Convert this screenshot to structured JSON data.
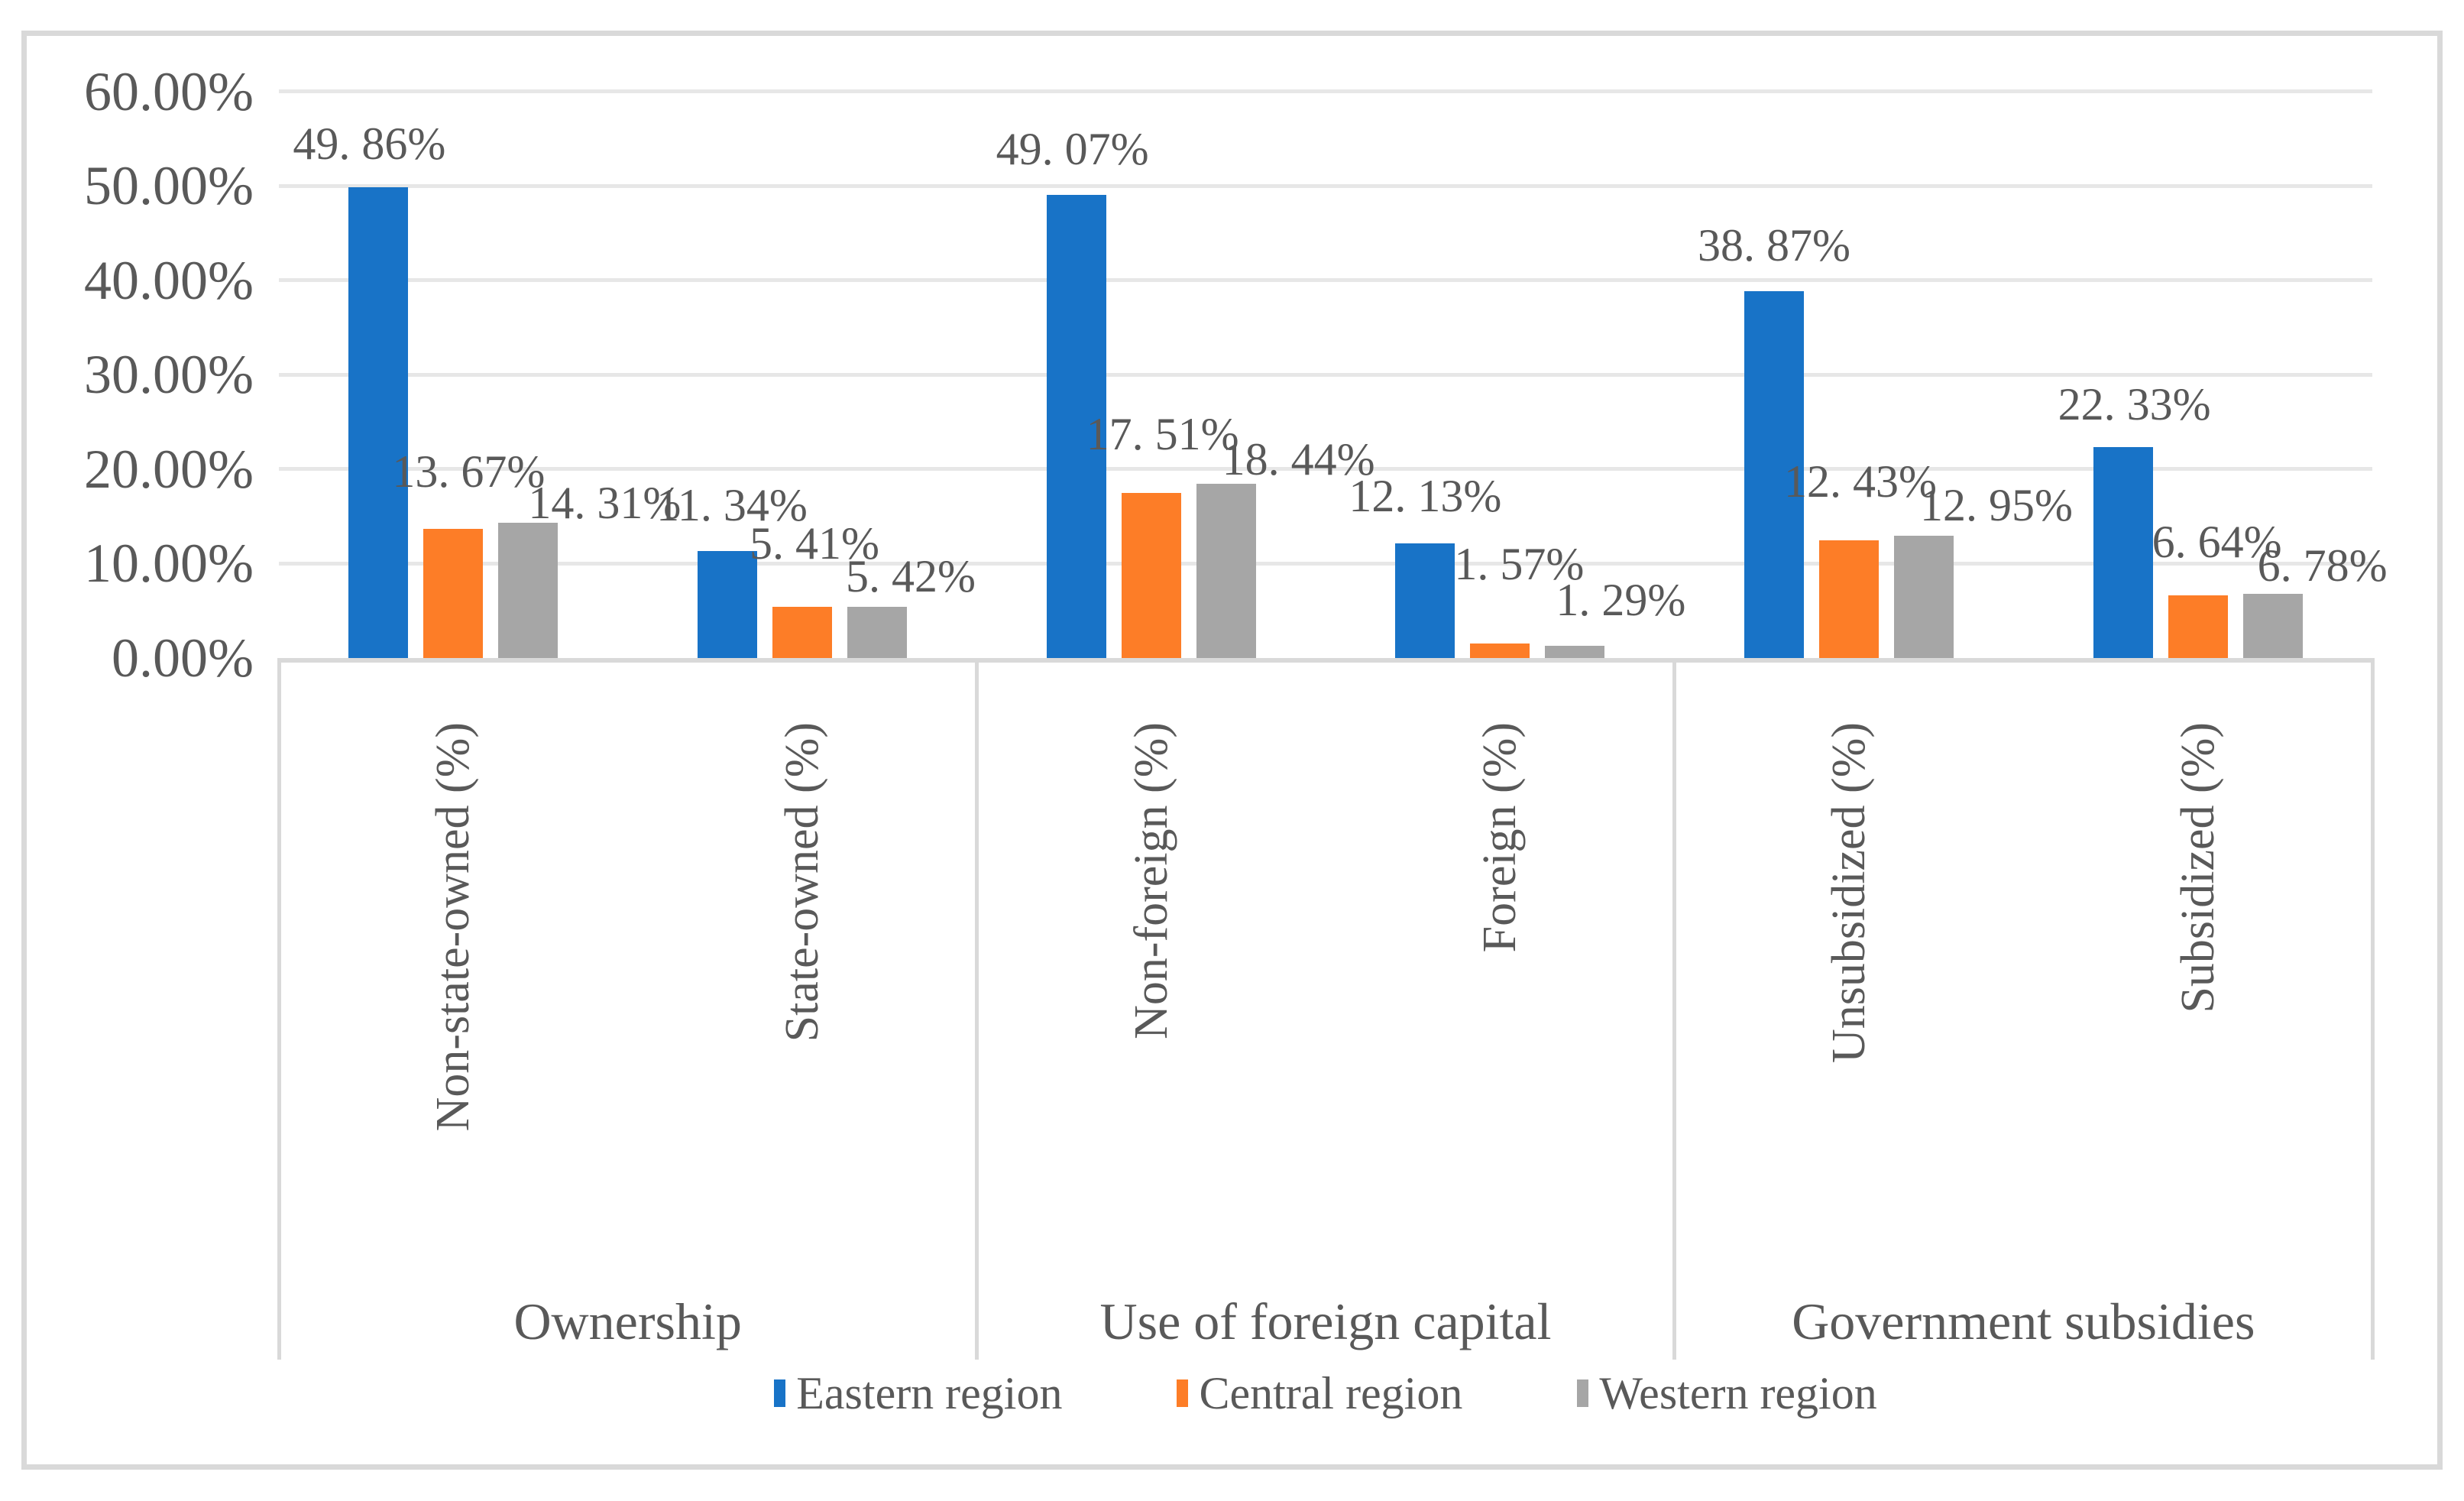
{
  "chart_data": {
    "type": "bar",
    "title": "",
    "y_axis": {
      "tick_labels": [
        "0.00%",
        "10.00%",
        "20.00%",
        "30.00%",
        "40.00%",
        "50.00%",
        "60.00%"
      ],
      "min": 0,
      "max": 60,
      "tick_step": 10,
      "grid": true
    },
    "groups": [
      {
        "label": "Ownership"
      },
      {
        "label": "Use of foreign capital"
      },
      {
        "label": "Government subsidies"
      }
    ],
    "categories": [
      {
        "label": "Non-state-owned (%)",
        "group": 0
      },
      {
        "label": "State-owned (%)",
        "group": 0
      },
      {
        "label": "Non-foreign (%)",
        "group": 1
      },
      {
        "label": "Foreign (%)",
        "group": 1
      },
      {
        "label": "Unsubsidized (%)",
        "group": 2
      },
      {
        "label": "Subsidized (%)",
        "group": 2
      }
    ],
    "series": [
      {
        "name": "Eastern region",
        "color": "#1873C7",
        "values": [
          49.86,
          11.34,
          49.07,
          12.13,
          38.87,
          22.33
        ],
        "labels": [
          "49. 86%",
          "11. 34%",
          "49. 07%",
          "12. 13%",
          "38. 87%",
          "22. 33%"
        ]
      },
      {
        "name": "Central region",
        "color": "#FD7D27",
        "values": [
          13.67,
          5.41,
          17.51,
          1.57,
          12.43,
          6.64
        ],
        "labels": [
          "13. 67%",
          "5. 41%",
          "17. 51%",
          "1. 57%",
          "12. 43%",
          "6. 64%"
        ]
      },
      {
        "name": "Western region",
        "color": "#A6A6A6",
        "values": [
          14.31,
          5.42,
          18.44,
          1.29,
          12.95,
          6.78
        ],
        "labels": [
          "14. 31%",
          "5. 42%",
          "18. 44%",
          "1. 29%",
          "12. 95%",
          "6. 78%"
        ]
      }
    ],
    "label_layout": [
      [
        {
          "dx": -12,
          "gap": 25
        },
        {
          "dx": 6,
          "gap": 28
        },
        {
          "dx": -5,
          "gap": 28
        },
        {
          "dx": 0,
          "gap": 30
        },
        {
          "dx": 0,
          "gap": 28
        },
        {
          "dx": 15,
          "gap": 24
        }
      ],
      [
        {
          "dx": 20,
          "gap": 43
        },
        {
          "dx": 16,
          "gap": 51
        },
        {
          "dx": 15,
          "gap": 45
        },
        {
          "dx": 25,
          "gap": 72
        },
        {
          "dx": 15,
          "gap": 45
        },
        {
          "dx": 25,
          "gap": 38
        }
      ],
      [
        {
          "dx": 100,
          "gap": -6
        },
        {
          "dx": 44,
          "gap": 8
        },
        {
          "dx": 95,
          "gap": 0
        },
        {
          "dx": 60,
          "gap": 28
        },
        {
          "dx": 95,
          "gap": 8
        },
        {
          "dx": 65,
          "gap": 5
        }
      ]
    ],
    "legend_position": "bottom",
    "colors": {
      "text": "#595959",
      "gridline": "#E7E7E7",
      "axis_line": "#D9D9D9",
      "frame_border": "#D9D9D9"
    }
  }
}
